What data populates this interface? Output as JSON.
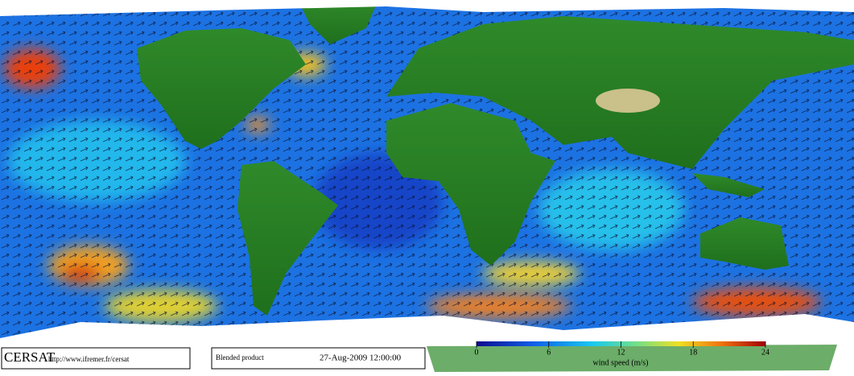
{
  "branding": {
    "name": "CERSAT",
    "url": "http://www.ifremer.fr/cersat"
  },
  "product": {
    "name": "Blended product",
    "date": "27-Aug-2009 12:00:00"
  },
  "colorbar": {
    "label": "wind speed (m/s)",
    "lim": [
      0,
      24
    ],
    "ticks": [
      0,
      6,
      12,
      18,
      24
    ]
  }
}
